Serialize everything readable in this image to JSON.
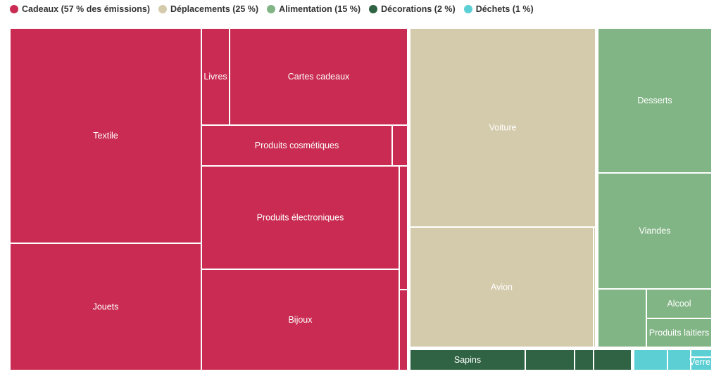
{
  "chart_data": {
    "type": "treemap",
    "legend": [
      {
        "label": "Cadeaux (57 % des émissions)",
        "color": "#c92b52"
      },
      {
        "label": "Déplacements (25 %)",
        "color": "#d4caac"
      },
      {
        "label": "Alimentation (15 %)",
        "color": "#82b585"
      },
      {
        "label": "Décorations (2 %)",
        "color": "#2f6343"
      },
      {
        "label": "Déchets (1 %)",
        "color": "#5bcfd4"
      }
    ],
    "legend_position": "top-left",
    "categories": [
      {
        "name": "Cadeaux",
        "color": "#c92b52",
        "children": [
          {
            "label": "Textile"
          },
          {
            "label": "Jouets"
          },
          {
            "label": "Livres"
          },
          {
            "label": "Cartes cadeaux"
          },
          {
            "label": "Produits cosmétiques"
          },
          {
            "label": ""
          },
          {
            "label": "Produits électroniques"
          },
          {
            "label": "Bijoux"
          },
          {
            "label": ""
          },
          {
            "label": ""
          }
        ]
      },
      {
        "name": "Déplacements",
        "color": "#d4caac",
        "children": [
          {
            "label": "Voiture"
          },
          {
            "label": "Avion"
          },
          {
            "label": ""
          }
        ]
      },
      {
        "name": "Alimentation",
        "color": "#82b585",
        "children": [
          {
            "label": "Desserts"
          },
          {
            "label": "Viandes"
          },
          {
            "label": ""
          },
          {
            "label": "Alcool"
          },
          {
            "label": "Produits laitiers"
          }
        ]
      },
      {
        "name": "Décorations",
        "color": "#2f6343",
        "children": [
          {
            "label": "Sapins"
          },
          {
            "label": ""
          },
          {
            "label": ""
          },
          {
            "label": ""
          }
        ]
      },
      {
        "name": "Déchets",
        "color": "#5bcfd4",
        "children": [
          {
            "label": ""
          },
          {
            "label": ""
          },
          {
            "label": ""
          },
          {
            "label": "Verre"
          }
        ]
      }
    ]
  }
}
